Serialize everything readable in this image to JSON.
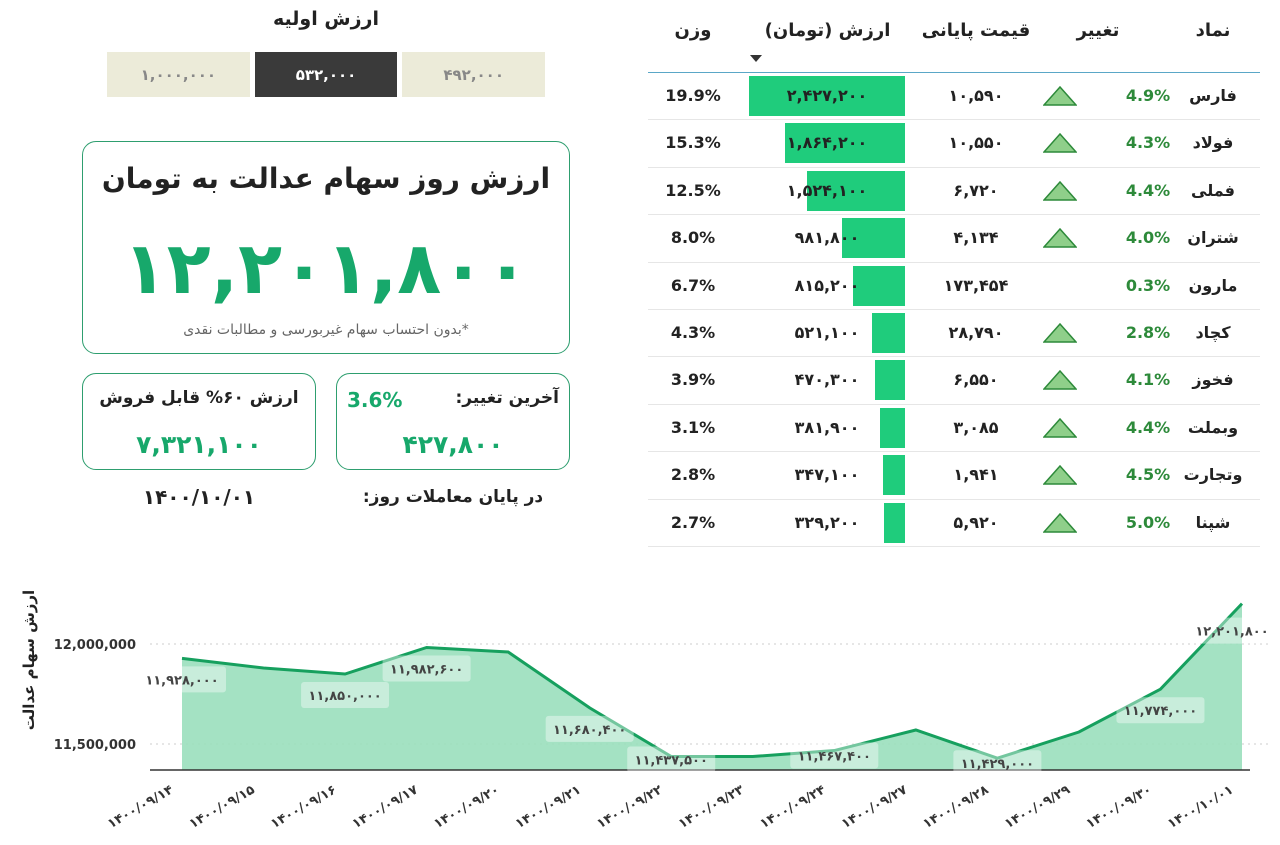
{
  "initial": {
    "title": "ارزش اولیه",
    "options": [
      "۱,۰۰۰,۰۰۰",
      "۵۳۲,۰۰۰",
      "۴۹۲,۰۰۰"
    ],
    "selected": 1
  },
  "summary": {
    "title": "ارزش روز سهام عدالت به تومان",
    "value": "۱۲,۲۰۱,۸۰۰",
    "note": "*بدون احتساب سهام غیربورسی و مطالبات نقدی",
    "sellable_label": "ارزش ۶۰% قابل فروش",
    "sellable_value": "۷,۳۲۱,۱۰۰",
    "last_change_label": "آخرین تغییر:",
    "last_change_pct": "3.6%",
    "last_change_value": "۴۲۷,۸۰۰",
    "date_label": "در پایان معاملات روز:",
    "date": "۱۴۰۰/۱۰/۰۱"
  },
  "colors": {
    "accent": "#17a86b",
    "bar": "#1fcc7c",
    "up": "#2d8a3a",
    "area": "#9adfbd",
    "line": "#16a05e"
  },
  "table": {
    "headers": {
      "symbol": "نماد",
      "change": "تغییر",
      "price": "قیمت پایانی",
      "value": "ارزش (تومان)",
      "weight": "وزن"
    },
    "rows": [
      {
        "symbol": "فارس",
        "change": "4.9%",
        "up": true,
        "price": "۱۰,۵۹۰",
        "value": "۲,۴۲۷,۲۰۰",
        "amount": 2427200,
        "weight": "19.9%"
      },
      {
        "symbol": "فولاد",
        "change": "4.3%",
        "up": true,
        "price": "۱۰,۵۵۰",
        "value": "۱,۸۶۴,۲۰۰",
        "amount": 1864200,
        "weight": "15.3%"
      },
      {
        "symbol": "فملی",
        "change": "4.4%",
        "up": true,
        "price": "۶,۷۲۰",
        "value": "۱,۵۲۴,۱۰۰",
        "amount": 1524100,
        "weight": "12.5%"
      },
      {
        "symbol": "شتران",
        "change": "4.0%",
        "up": true,
        "price": "۴,۱۳۴",
        "value": "۹۸۱,۸۰۰",
        "amount": 981800,
        "weight": "8.0%"
      },
      {
        "symbol": "مارون",
        "change": "0.3%",
        "up": false,
        "price": "۱۷۳,۴۵۴",
        "value": "۸۱۵,۲۰۰",
        "amount": 815200,
        "weight": "6.7%"
      },
      {
        "symbol": "کچاد",
        "change": "2.8%",
        "up": true,
        "price": "۲۸,۷۹۰",
        "value": "۵۲۱,۱۰۰",
        "amount": 521100,
        "weight": "4.3%"
      },
      {
        "symbol": "فخوز",
        "change": "4.1%",
        "up": true,
        "price": "۶,۵۵۰",
        "value": "۴۷۰,۳۰۰",
        "amount": 470300,
        "weight": "3.9%"
      },
      {
        "symbol": "وبملت",
        "change": "4.4%",
        "up": true,
        "price": "۳,۰۸۵",
        "value": "۳۸۱,۹۰۰",
        "amount": 381900,
        "weight": "3.1%"
      },
      {
        "symbol": "وتجارت",
        "change": "4.5%",
        "up": true,
        "price": "۱,۹۴۱",
        "value": "۳۴۷,۱۰۰",
        "amount": 347100,
        "weight": "2.8%"
      },
      {
        "symbol": "شپنا",
        "change": "5.0%",
        "up": true,
        "price": "۵,۹۲۰",
        "value": "۳۲۹,۲۰۰",
        "amount": 329200,
        "weight": "2.7%"
      }
    ]
  },
  "chart_data": {
    "type": "area",
    "ylabel": "ارزش سهام عدالت",
    "ylim": [
      11370000,
      12420000
    ],
    "yticks": [
      11500000,
      12000000
    ],
    "ytick_labels": [
      "11,500,000",
      "12,000,000"
    ],
    "x": [
      "۱۴۰۰/۰۹/۱۴",
      "۱۴۰۰/۰۹/۱۵",
      "۱۴۰۰/۰۹/۱۶",
      "۱۴۰۰/۰۹/۱۷",
      "۱۴۰۰/۰۹/۲۰",
      "۱۴۰۰/۰۹/۲۱",
      "۱۴۰۰/۰۹/۲۲",
      "۱۴۰۰/۰۹/۲۳",
      "۱۴۰۰/۰۹/۲۴",
      "۱۴۰۰/۰۹/۲۷",
      "۱۴۰۰/۰۹/۲۸",
      "۱۴۰۰/۰۹/۲۹",
      "۱۴۰۰/۰۹/۳۰",
      "۱۴۰۰/۱۰/۰۱"
    ],
    "values": [
      11928000,
      11880000,
      11850000,
      11982600,
      11960000,
      11680400,
      11437500,
      11437500,
      11467400,
      11570000,
      11429000,
      11560000,
      11774000,
      12201800
    ],
    "point_labels": [
      "۱۱,۹۲۸,۰۰۰",
      "",
      "۱۱,۸۵۰,۰۰۰",
      "۱۱,۹۸۲,۶۰۰",
      "",
      "۱۱,۶۸۰,۴۰۰",
      "۱۱,۴۳۷,۵۰۰",
      "",
      "۱۱,۴۶۷,۴۰۰",
      "",
      "۱۱,۴۲۹,۰۰۰",
      "",
      "۱۱,۷۷۴,۰۰۰",
      "۱۲,۲۰۱,۸۰۰"
    ],
    "grid": "horizontal-dotted"
  }
}
